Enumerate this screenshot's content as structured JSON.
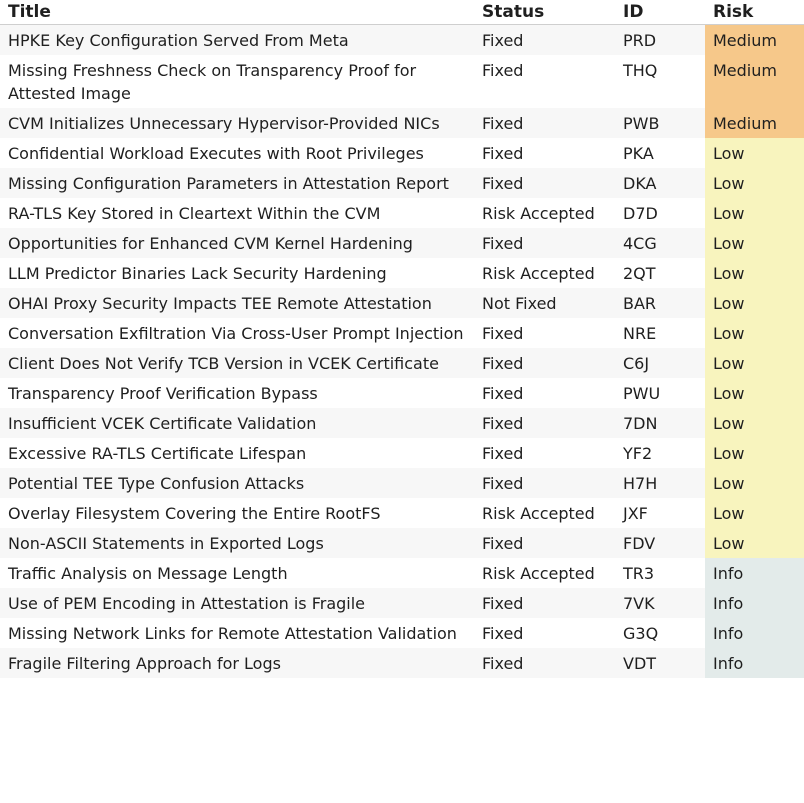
{
  "headers": {
    "title": "Title",
    "status": "Status",
    "id": "ID",
    "risk": "Risk"
  },
  "colors": {
    "medium": "#f6c88a",
    "low": "#f8f4be",
    "info": "#e3ebea"
  },
  "rows": [
    {
      "title": "HPKE Key Configuration Served From Meta",
      "status": "Fixed",
      "id": "PRD",
      "risk": "Medium"
    },
    {
      "title": "Missing Freshness Check on Transparency Proof for Attested Image",
      "status": "Fixed",
      "id": "THQ",
      "risk": "Medium"
    },
    {
      "title": "CVM Initializes Unnecessary Hypervisor-Provided NICs",
      "status": "Fixed",
      "id": "PWB",
      "risk": "Medium"
    },
    {
      "title": "Confidential Workload Executes with Root Privileges",
      "status": "Fixed",
      "id": "PKA",
      "risk": "Low"
    },
    {
      "title": "Missing Configuration Parameters in Attestation Report",
      "status": "Fixed",
      "id": "DKA",
      "risk": "Low"
    },
    {
      "title": "RA-TLS Key Stored in Cleartext Within the CVM",
      "status": "Risk Accepted",
      "id": "D7D",
      "risk": "Low"
    },
    {
      "title": "Opportunities for Enhanced CVM Kernel Hardening",
      "status": "Fixed",
      "id": "4CG",
      "risk": "Low"
    },
    {
      "title": "LLM Predictor Binaries Lack Security Hardening",
      "status": "Risk Accepted",
      "id": "2QT",
      "risk": "Low"
    },
    {
      "title": "OHAI Proxy Security Impacts TEE Remote Attestation",
      "status": "Not Fixed",
      "id": "BAR",
      "risk": "Low"
    },
    {
      "title": "Conversation Exfiltration Via Cross-User Prompt Injection",
      "status": "Fixed",
      "id": "NRE",
      "risk": "Low"
    },
    {
      "title": "Client Does Not Verify TCB Version in VCEK Certificate",
      "status": "Fixed",
      "id": "C6J",
      "risk": "Low"
    },
    {
      "title": "Transparency Proof Verification Bypass",
      "status": "Fixed",
      "id": "PWU",
      "risk": "Low"
    },
    {
      "title": "Insufficient VCEK Certificate Validation",
      "status": "Fixed",
      "id": "7DN",
      "risk": "Low"
    },
    {
      "title": "Excessive RA-TLS Certificate Lifespan",
      "status": "Fixed",
      "id": "YF2",
      "risk": "Low"
    },
    {
      "title": "Potential TEE Type Confusion Attacks",
      "status": "Fixed",
      "id": "H7H",
      "risk": "Low"
    },
    {
      "title": "Overlay Filesystem Covering the Entire RootFS",
      "status": "Risk Accepted",
      "id": "JXF",
      "risk": "Low"
    },
    {
      "title": "Non-ASCII Statements in Exported Logs",
      "status": "Fixed",
      "id": "FDV",
      "risk": "Low"
    },
    {
      "title": "Traffic Analysis on Message Length",
      "status": "Risk Accepted",
      "id": "TR3",
      "risk": "Info"
    },
    {
      "title": "Use of PEM Encoding in Attestation is Fragile",
      "status": "Fixed",
      "id": "7VK",
      "risk": "Info"
    },
    {
      "title": "Missing Network Links for Remote Attestation Validation",
      "status": "Fixed",
      "id": "G3Q",
      "risk": "Info"
    },
    {
      "title": "Fragile Filtering Approach for Logs",
      "status": "Fixed",
      "id": "VDT",
      "risk": "Info"
    }
  ]
}
